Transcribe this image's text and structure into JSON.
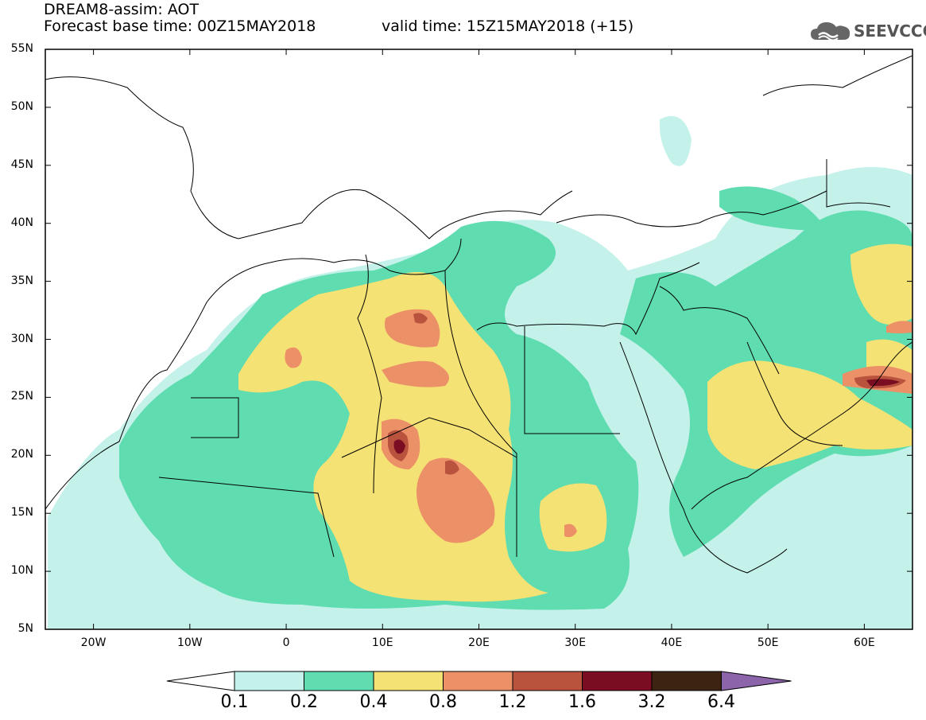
{
  "header": {
    "title_line1": "DREAM8-assim: AOT",
    "title_line2": "Forecast base time: 00Z15MAY2018",
    "title_valid": "valid time: 15Z15MAY2018 (+15)",
    "logo_text": "SEEVCCC",
    "logo_icon": "cloud-icon"
  },
  "map": {
    "lon_range": [
      -25,
      65
    ],
    "lat_range": [
      5,
      55
    ],
    "lat_labels": [
      "55N",
      "50N",
      "45N",
      "40N",
      "35N",
      "30N",
      "25N",
      "20N",
      "15N",
      "10N",
      "5N"
    ],
    "lon_labels": [
      "20W",
      "10W",
      "0",
      "10E",
      "20E",
      "30E",
      "40E",
      "50E",
      "60E"
    ]
  },
  "colorbar": {
    "labels": [
      "0.1",
      "0.2",
      "0.4",
      "0.8",
      "1.2",
      "1.6",
      "3.2",
      "6.4"
    ],
    "colors": [
      "#ffffff",
      "#c4f2ea",
      "#5fdcb0",
      "#f5e274",
      "#ec9068",
      "#b9533e",
      "#7a0d22",
      "#3d2312",
      "#8c64aa"
    ]
  }
}
